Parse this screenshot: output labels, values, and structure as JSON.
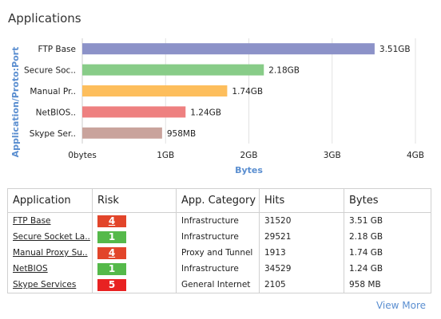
{
  "header": {
    "title": "Applications"
  },
  "chart_data": {
    "type": "bar",
    "orientation": "horizontal",
    "categories": [
      "FTP Base",
      "Secure Soc..",
      "Manual Pr..",
      "NetBIOS..",
      "Skype Ser.."
    ],
    "values": [
      3.51,
      2.18,
      1.74,
      1.24,
      0.958
    ],
    "value_labels": [
      "3.51GB",
      "2.18GB",
      "1.74GB",
      "1.24GB",
      "958MB"
    ],
    "colors": [
      "#8c92c8",
      "#88cc88",
      "#fdbe5c",
      "#ee8080",
      "#c9a39c"
    ],
    "xlabel": "Bytes",
    "ylabel": "Application/Proto:Port",
    "xlim": [
      0,
      4
    ],
    "xticks": [
      0,
      1,
      2,
      3,
      4
    ],
    "xtick_labels": [
      "0bytes",
      "1GB",
      "2GB",
      "3GB",
      "4GB"
    ],
    "grid": true
  },
  "table": {
    "headers": [
      "Application",
      "Risk",
      "App. Category",
      "Hits",
      "Bytes"
    ],
    "rows": [
      {
        "app": "FTP Base",
        "risk": "4",
        "risk_level": 4,
        "category": "Infrastructure",
        "hits": "31520",
        "bytes": "3.51 GB"
      },
      {
        "app": "Secure Socket La..",
        "risk": "1",
        "risk_level": 1,
        "category": "Infrastructure",
        "hits": "29521",
        "bytes": "2.18 GB"
      },
      {
        "app": "Manual Proxy Su..",
        "risk": "4",
        "risk_level": 4,
        "category": "Proxy and Tunnel",
        "hits": "1913",
        "bytes": "1.74 GB"
      },
      {
        "app": "NetBIOS",
        "risk": "1",
        "risk_level": 1,
        "category": "Infrastructure",
        "hits": "34529",
        "bytes": "1.24 GB"
      },
      {
        "app": "Skype Services",
        "risk": "5",
        "risk_level": 5,
        "category": "General Internet",
        "hits": "2105",
        "bytes": "958 MB"
      }
    ]
  },
  "footer": {
    "view_more": "View More"
  }
}
